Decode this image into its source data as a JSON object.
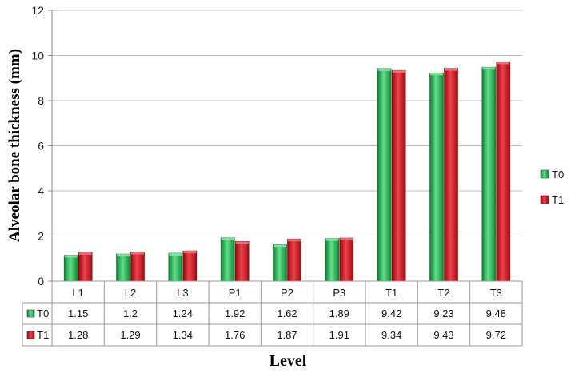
{
  "chart_data": {
    "type": "bar",
    "ylabel": "Alveolar bone thickness (mm)",
    "xlabel": "Level",
    "ylim": [
      0,
      12
    ],
    "yticks": [
      0,
      2,
      4,
      6,
      8,
      10,
      12
    ],
    "grid": true,
    "legend_position": "right",
    "categories": [
      "L1",
      "L2",
      "L3",
      "P1",
      "P2",
      "P3",
      "T1",
      "T2",
      "T3"
    ],
    "series": [
      {
        "name": "T0",
        "color": "#1faa4a",
        "values": [
          1.15,
          1.2,
          1.24,
          1.92,
          1.62,
          1.89,
          9.42,
          9.23,
          9.48
        ]
      },
      {
        "name": "T1",
        "color": "#c8101a",
        "values": [
          1.28,
          1.29,
          1.34,
          1.76,
          1.87,
          1.91,
          9.34,
          9.43,
          9.72
        ]
      }
    ]
  }
}
